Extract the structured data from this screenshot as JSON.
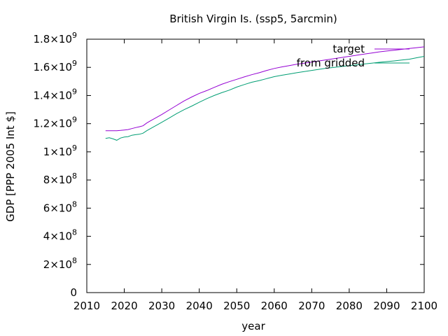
{
  "chart_data": {
    "type": "line",
    "title": "British Virgin Is. (ssp5, 5arcmin)",
    "xlabel": "year",
    "ylabel": "GDP [PPP 2005 Int $]",
    "xlim": [
      2010,
      2100
    ],
    "ylim": [
      0,
      1800000000
    ],
    "grid": false,
    "legend_position": "top-right",
    "x_ticks": [
      "2010",
      "2020",
      "2030",
      "2040",
      "2050",
      "2060",
      "2070",
      "2080",
      "2090",
      "2100"
    ],
    "y_ticks": [
      {
        "value": 0,
        "mantissa": "0",
        "exp": ""
      },
      {
        "value": 200000000,
        "mantissa": "2×10",
        "exp": "8"
      },
      {
        "value": 400000000,
        "mantissa": "4×10",
        "exp": "8"
      },
      {
        "value": 600000000,
        "mantissa": "6×10",
        "exp": "8"
      },
      {
        "value": 800000000,
        "mantissa": "8×10",
        "exp": "8"
      },
      {
        "value": 1000000000,
        "mantissa": "1×10",
        "exp": "9"
      },
      {
        "value": 1200000000,
        "mantissa": "1.2×10",
        "exp": "9"
      },
      {
        "value": 1400000000,
        "mantissa": "1.4×10",
        "exp": "9"
      },
      {
        "value": 1600000000,
        "mantissa": "1.6×10",
        "exp": "9"
      },
      {
        "value": 1800000000,
        "mantissa": "1.8×10",
        "exp": "9"
      }
    ],
    "series": [
      {
        "name": "target",
        "color": "#9400d3",
        "x": [
          2015,
          2016,
          2017,
          2018,
          2019,
          2020,
          2021,
          2022,
          2023,
          2024,
          2025,
          2026,
          2027,
          2028,
          2029,
          2030,
          2032,
          2034,
          2036,
          2038,
          2040,
          2042,
          2044,
          2046,
          2048,
          2050,
          2052,
          2054,
          2056,
          2058,
          2060,
          2062,
          2064,
          2066,
          2068,
          2070,
          2072,
          2074,
          2076,
          2078,
          2080,
          2082,
          2084,
          2086,
          2088,
          2090,
          2092,
          2094,
          2096,
          2098,
          2100
        ],
        "y": [
          1150000000,
          1150000000,
          1150000000,
          1150000000,
          1152000000,
          1155000000,
          1158000000,
          1165000000,
          1172000000,
          1178000000,
          1185000000,
          1205000000,
          1220000000,
          1235000000,
          1250000000,
          1265000000,
          1298000000,
          1330000000,
          1362000000,
          1390000000,
          1415000000,
          1435000000,
          1458000000,
          1480000000,
          1498000000,
          1515000000,
          1532000000,
          1548000000,
          1562000000,
          1578000000,
          1592000000,
          1603000000,
          1612000000,
          1622000000,
          1630000000,
          1638000000,
          1646000000,
          1654000000,
          1662000000,
          1670000000,
          1678000000,
          1686000000,
          1694000000,
          1702000000,
          1710000000,
          1716000000,
          1722000000,
          1728000000,
          1734000000,
          1740000000,
          1746000000
        ]
      },
      {
        "name": "from gridded",
        "color": "#009e73",
        "x": [
          2015,
          2016,
          2017,
          2018,
          2019,
          2020,
          2021,
          2022,
          2023,
          2024,
          2025,
          2026,
          2027,
          2028,
          2029,
          2030,
          2032,
          2034,
          2036,
          2038,
          2040,
          2042,
          2044,
          2046,
          2048,
          2050,
          2052,
          2054,
          2056,
          2058,
          2060,
          2062,
          2064,
          2066,
          2068,
          2070,
          2072,
          2074,
          2076,
          2078,
          2080,
          2082,
          2084,
          2086,
          2088,
          2090,
          2092,
          2094,
          2096,
          2098,
          2100
        ],
        "y": [
          1095000000,
          1100000000,
          1092000000,
          1082000000,
          1098000000,
          1105000000,
          1108000000,
          1118000000,
          1122000000,
          1125000000,
          1132000000,
          1150000000,
          1165000000,
          1180000000,
          1195000000,
          1210000000,
          1240000000,
          1272000000,
          1300000000,
          1325000000,
          1352000000,
          1378000000,
          1400000000,
          1420000000,
          1438000000,
          1460000000,
          1478000000,
          1494000000,
          1506000000,
          1520000000,
          1534000000,
          1544000000,
          1553000000,
          1562000000,
          1570000000,
          1578000000,
          1586000000,
          1594000000,
          1600000000,
          1606000000,
          1612000000,
          1618000000,
          1624000000,
          1630000000,
          1636000000,
          1641000000,
          1646000000,
          1652000000,
          1658000000,
          1668000000,
          1678000000
        ]
      }
    ]
  }
}
